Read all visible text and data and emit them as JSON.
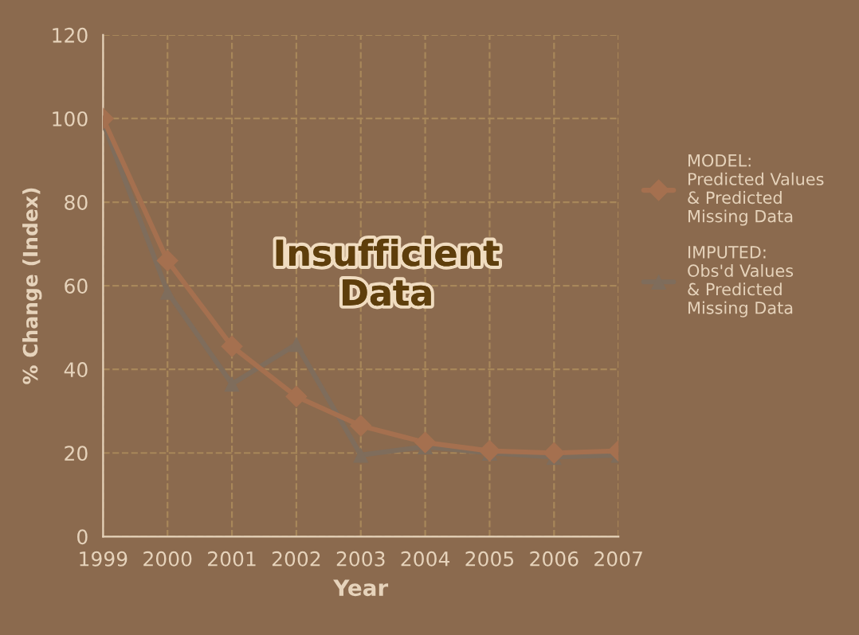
{
  "chart_data": {
    "type": "line",
    "xlabel": "Year",
    "ylabel": "% Change (Index)",
    "x": [
      1999,
      2000,
      2001,
      2002,
      2003,
      2004,
      2005,
      2006,
      2007
    ],
    "xlim": [
      1999,
      2007
    ],
    "xticks": [
      1999,
      2000,
      2001,
      2002,
      2003,
      2004,
      2005,
      2006,
      2007
    ],
    "ylim": [
      0,
      120
    ],
    "yticks": [
      0,
      20,
      40,
      60,
      80,
      100,
      120
    ],
    "grid": true,
    "legend": "right",
    "line_style": "solid",
    "series": [
      {
        "name": "MODEL:\nPredicted Values\n& Predicted\nMissing Data",
        "color": "#a5704f",
        "marker": "diamond",
        "values": [
          100,
          66,
          45.5,
          33.5,
          26.5,
          22.5,
          20.5,
          20,
          20.5
        ]
      },
      {
        "name": "IMPUTED:\nObs'd Values\n& Predicted\nMissing Data",
        "color": "#7f6d5c",
        "marker": "triangle",
        "values": [
          99,
          58.5,
          36.5,
          46,
          19.5,
          21.5,
          20,
          19,
          19.5
        ]
      }
    ],
    "annotations": [
      "Insufficient\nData"
    ]
  }
}
